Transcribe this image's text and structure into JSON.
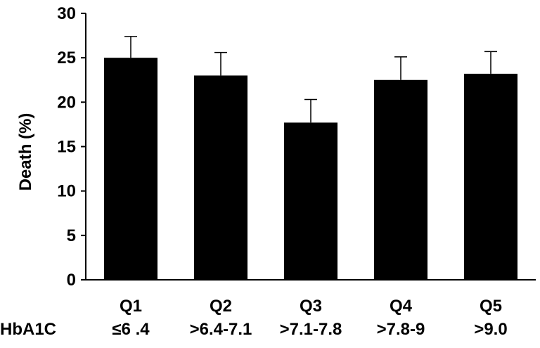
{
  "chart_data": {
    "type": "bar",
    "title": "",
    "ylabel": "Death (%)",
    "xlabel": "",
    "row_label": "HbA1C",
    "categories": [
      "Q1",
      "Q2",
      "Q3",
      "Q4",
      "Q5"
    ],
    "ranges": [
      "≤6 .4",
      ">6.4-7.1",
      ">7.1-7.8",
      ">7.8-9",
      ">9.0"
    ],
    "values": [
      25.0,
      23.0,
      17.7,
      22.5,
      23.2
    ],
    "error_upper": [
      27.4,
      25.6,
      20.3,
      25.1,
      25.7
    ],
    "ylim": [
      0,
      30
    ],
    "yticks": [
      0,
      5,
      10,
      15,
      20,
      25,
      30
    ],
    "grid": false,
    "bar_color": "#000000"
  }
}
